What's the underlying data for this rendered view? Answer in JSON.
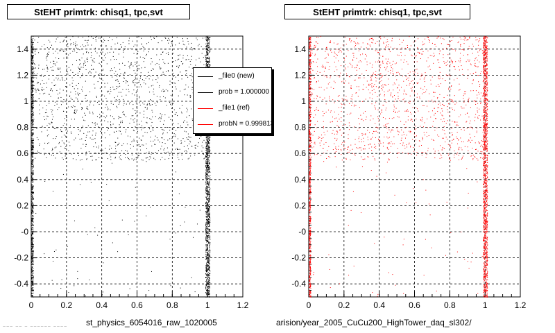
{
  "panels": [
    {
      "title": "StEHT primtrk: chisq1, tpc,svt",
      "xlabel": "st_physics_6054016_raw_1020005",
      "color": "#000000"
    },
    {
      "title": "StEHT primtrk: chisq1, tpc,svt",
      "xlabel": "arision/year_2005_CuCu200_HighTower_daq_sl302/",
      "color": "#ff0000"
    }
  ],
  "legend": {
    "entries": [
      {
        "label": "_file0 (new)",
        "color": "#000000"
      },
      {
        "label": "prob = 1.000000",
        "color": "#000000"
      },
      {
        "label": "_file1 (ref)",
        "color": "#ff0000"
      },
      {
        "label": "probN = 0.999813",
        "color": "#ff0000"
      }
    ]
  },
  "footer_text": "~~~ ~~ ~ ~~~~~~ ~~~~",
  "chart_data": [
    {
      "type": "scatter",
      "title": "StEHT primtrk: chisq1, tpc,svt",
      "xlabel": "st_physics_6054016_raw_1020005",
      "ylabel": "",
      "xlim": [
        0,
        1.2
      ],
      "ylim": [
        -0.5,
        1.5
      ],
      "xticks": [
        "0",
        "0.2",
        "0.4",
        "0.6",
        "0.8",
        "1",
        "1.2"
      ],
      "yticks": [
        "-0.4",
        "-0.2",
        "-0",
        "0.2",
        "0.4",
        "0.6",
        "0.8",
        "1",
        "1.2",
        "1.4"
      ],
      "grid": true,
      "series": [
        {
          "name": "_file0 (new)",
          "color": "#000000"
        }
      ],
      "density": {
        "upper_band_y": [
          0.55,
          1.5
        ],
        "dense_columns_x": [
          0.0,
          1.0
        ],
        "sparse_lower_y": [
          -0.5,
          0.55
        ]
      }
    },
    {
      "type": "scatter",
      "title": "StEHT primtrk: chisq1, tpc,svt",
      "xlabel": "arision/year_2005_CuCu200_HighTower_daq_sl302/",
      "ylabel": "",
      "xlim": [
        0,
        1.2
      ],
      "ylim": [
        -0.5,
        1.5
      ],
      "xticks": [
        "0",
        "0.2",
        "0.4",
        "0.6",
        "0.8",
        "1",
        "1.2"
      ],
      "yticks": [
        "-0.4",
        "-0.2",
        "-0",
        "0.2",
        "0.4",
        "0.6",
        "0.8",
        "1",
        "1.2",
        "1.4"
      ],
      "grid": true,
      "series": [
        {
          "name": "_file1 (ref)",
          "color": "#ff0000"
        }
      ],
      "density": {
        "upper_band_y": [
          0.55,
          1.5
        ],
        "dense_columns_x": [
          0.0,
          1.0
        ],
        "sparse_lower_y": [
          -0.5,
          0.55
        ]
      }
    }
  ]
}
